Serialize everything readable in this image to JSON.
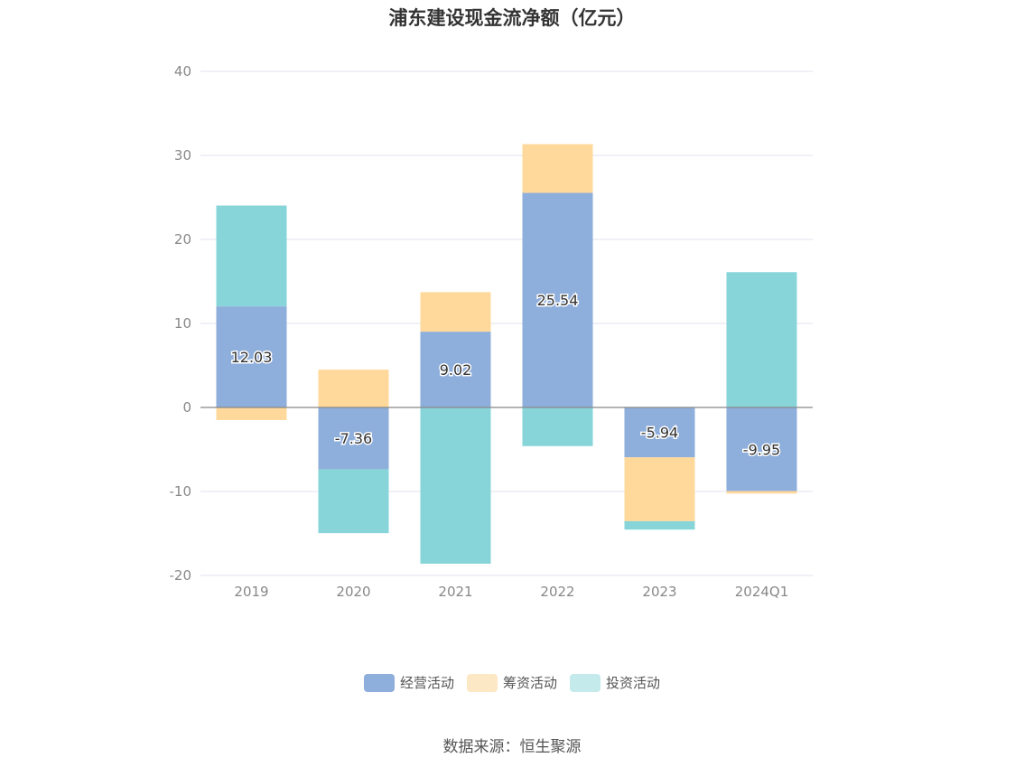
{
  "chart_data": {
    "type": "bar",
    "stacked": true,
    "title": "浦东建设现金流净额（亿元）",
    "categories": [
      "2019",
      "2020",
      "2021",
      "2022",
      "2023",
      "2024Q1"
    ],
    "series": [
      {
        "name": "经营活动",
        "color": "#8eaedb",
        "values": [
          12.03,
          -7.36,
          9.02,
          25.54,
          -5.94,
          -9.95
        ],
        "show_labels": true
      },
      {
        "name": "筹资活动",
        "color": "#ffd99b",
        "values": [
          -1.5,
          4.5,
          4.7,
          5.8,
          -7.6,
          -0.3
        ],
        "show_labels": false
      },
      {
        "name": "投资活动",
        "color": "#87d5d9",
        "values": [
          12.0,
          -7.6,
          -18.6,
          -4.6,
          -1.0,
          16.1
        ],
        "show_labels": false
      }
    ],
    "ylim": [
      -20,
      40
    ],
    "yticks": [
      40,
      30,
      20,
      10,
      0,
      -10,
      -20
    ],
    "grid": true,
    "legend_position": "bottom"
  },
  "legend_swatch_colors": [
    "#8eaedb",
    "#fde8c6",
    "#c4eaec"
  ],
  "source": "数据来源：恒生聚源"
}
